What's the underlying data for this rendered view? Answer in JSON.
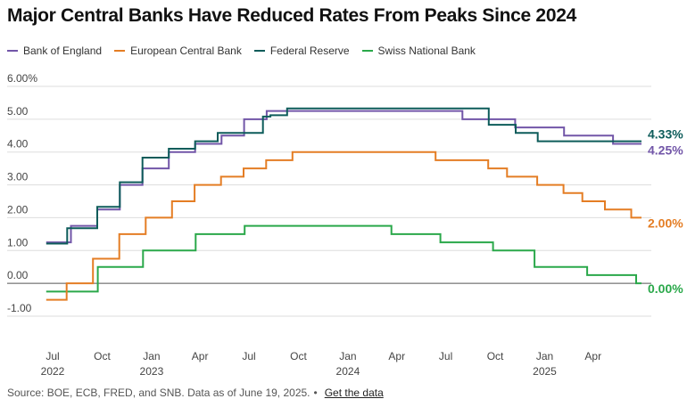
{
  "page": {
    "title": "Major Central Banks Have Reduced Rates From Peaks Since 2024",
    "source": "Source: BOE, ECB, FRED, and SNB. Data as of June 19, 2025.",
    "bullet": "•",
    "link": "Get the data"
  },
  "chart_data": {
    "type": "line",
    "title": "Major Central Banks Have Reduced Rates From Peaks Since 2024",
    "xlabel": "",
    "ylabel": "",
    "ylim": [
      -1.5,
      6
    ],
    "xlim": [
      "2022-06-19",
      "2025-06-30"
    ],
    "y_ticks": [
      {
        "value": 6,
        "label": "6.00%"
      },
      {
        "value": 5,
        "label": "5.00"
      },
      {
        "value": 4,
        "label": "4.00"
      },
      {
        "value": 3,
        "label": "3.00"
      },
      {
        "value": 2,
        "label": "2.00"
      },
      {
        "value": 1,
        "label": "1.00"
      },
      {
        "value": 0,
        "label": "0.00"
      },
      {
        "value": -1,
        "label": "-1.00"
      }
    ],
    "x_ticks": [
      {
        "date": "2022-07-01",
        "month": "Jul",
        "year": "2022"
      },
      {
        "date": "2022-10-01",
        "month": "Oct",
        "year": ""
      },
      {
        "date": "2023-01-01",
        "month": "Jan",
        "year": "2023"
      },
      {
        "date": "2023-04-01",
        "month": "Apr",
        "year": ""
      },
      {
        "date": "2023-07-01",
        "month": "Jul",
        "year": ""
      },
      {
        "date": "2023-10-01",
        "month": "Oct",
        "year": ""
      },
      {
        "date": "2024-01-01",
        "month": "Jan",
        "year": "2024"
      },
      {
        "date": "2024-04-01",
        "month": "Apr",
        "year": ""
      },
      {
        "date": "2024-07-01",
        "month": "Jul",
        "year": ""
      },
      {
        "date": "2024-10-01",
        "month": "Oct",
        "year": ""
      },
      {
        "date": "2025-01-01",
        "month": "Jan",
        "year": "2025"
      },
      {
        "date": "2025-04-01",
        "month": "Apr",
        "year": ""
      }
    ],
    "series": [
      {
        "name": "Bank of England",
        "color": "#7256a8",
        "end_label": "4.25%",
        "points": [
          [
            "2022-06-19",
            1.25
          ],
          [
            "2022-08-04",
            1.75
          ],
          [
            "2022-09-22",
            2.25
          ],
          [
            "2022-11-03",
            3.0
          ],
          [
            "2022-12-15",
            3.5
          ],
          [
            "2023-02-02",
            4.0
          ],
          [
            "2023-03-23",
            4.25
          ],
          [
            "2023-05-11",
            4.5
          ],
          [
            "2023-06-22",
            5.0
          ],
          [
            "2023-08-03",
            5.25
          ],
          [
            "2024-08-01",
            5.0
          ],
          [
            "2024-11-07",
            4.75
          ],
          [
            "2025-02-06",
            4.5
          ],
          [
            "2025-05-08",
            4.25
          ],
          [
            "2025-06-30",
            4.25
          ]
        ]
      },
      {
        "name": "European Central Bank",
        "color": "#e47d24",
        "end_label": "2.00%",
        "points": [
          [
            "2022-06-19",
            -0.5
          ],
          [
            "2022-07-27",
            0.0
          ],
          [
            "2022-09-14",
            0.75
          ],
          [
            "2022-11-02",
            1.5
          ],
          [
            "2022-12-21",
            2.0
          ],
          [
            "2023-02-08",
            2.5
          ],
          [
            "2023-03-22",
            3.0
          ],
          [
            "2023-05-10",
            3.25
          ],
          [
            "2023-06-21",
            3.5
          ],
          [
            "2023-08-02",
            3.75
          ],
          [
            "2023-09-20",
            4.0
          ],
          [
            "2024-06-12",
            3.75
          ],
          [
            "2024-09-18",
            3.5
          ],
          [
            "2024-10-23",
            3.25
          ],
          [
            "2024-12-18",
            3.0
          ],
          [
            "2025-02-05",
            2.75
          ],
          [
            "2025-03-12",
            2.5
          ],
          [
            "2025-04-23",
            2.25
          ],
          [
            "2025-06-11",
            2.0
          ],
          [
            "2025-06-30",
            2.0
          ]
        ]
      },
      {
        "name": "Federal Reserve",
        "color": "#0d5c5a",
        "end_label": "4.33%",
        "points": [
          [
            "2022-06-19",
            1.21
          ],
          [
            "2022-07-28",
            1.68
          ],
          [
            "2022-09-22",
            2.33
          ],
          [
            "2022-11-03",
            3.08
          ],
          [
            "2022-12-15",
            3.83
          ],
          [
            "2023-02-02",
            4.1
          ],
          [
            "2023-03-23",
            4.33
          ],
          [
            "2023-05-04",
            4.58
          ],
          [
            "2023-07-27",
            5.08
          ],
          [
            "2023-08-10",
            5.12
          ],
          [
            "2023-09-10",
            5.33
          ],
          [
            "2024-09-19",
            4.83
          ],
          [
            "2024-11-08",
            4.58
          ],
          [
            "2024-12-19",
            4.33
          ],
          [
            "2025-06-30",
            4.33
          ]
        ]
      },
      {
        "name": "Swiss National Bank",
        "color": "#2aa84a",
        "end_label": "0.00%",
        "points": [
          [
            "2022-06-19",
            -0.25
          ],
          [
            "2022-09-23",
            0.5
          ],
          [
            "2022-12-16",
            1.0
          ],
          [
            "2023-03-24",
            1.5
          ],
          [
            "2023-06-23",
            1.75
          ],
          [
            "2024-03-22",
            1.5
          ],
          [
            "2024-06-21",
            1.25
          ],
          [
            "2024-09-27",
            1.0
          ],
          [
            "2024-12-13",
            0.5
          ],
          [
            "2025-03-21",
            0.25
          ],
          [
            "2025-06-20",
            0.0
          ],
          [
            "2025-06-30",
            0.0
          ]
        ]
      }
    ]
  }
}
